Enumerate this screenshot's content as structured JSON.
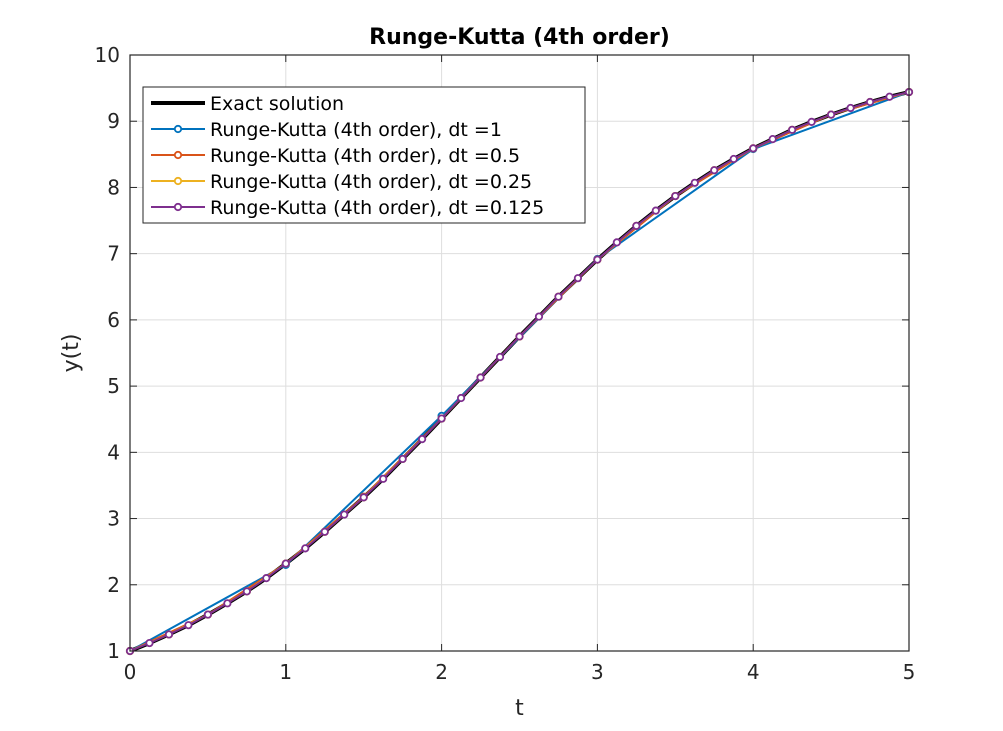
{
  "chart_data": {
    "type": "line",
    "title": "Runge-Kutta (4th order)",
    "xlabel": "t",
    "ylabel": "y(t)",
    "xlim": [
      0,
      5
    ],
    "ylim": [
      1,
      10
    ],
    "xticks": [
      0,
      1,
      2,
      3,
      4,
      5
    ],
    "yticks": [
      1,
      2,
      3,
      4,
      5,
      6,
      7,
      8,
      9,
      10
    ],
    "grid": true,
    "legend_position": "top-left",
    "series": [
      {
        "name": "Exact solution",
        "color": "#000000",
        "markers": false,
        "x": [
          0,
          0.125,
          0.25,
          0.375,
          0.5,
          0.625,
          0.75,
          0.875,
          1,
          1.125,
          1.25,
          1.375,
          1.5,
          1.625,
          1.75,
          1.875,
          2,
          2.125,
          2.25,
          2.375,
          2.5,
          2.625,
          2.75,
          2.875,
          3,
          3.125,
          3.25,
          3.375,
          3.5,
          3.625,
          3.75,
          3.875,
          4,
          4.125,
          4.25,
          4.375,
          4.5,
          4.625,
          4.75,
          4.875,
          5
        ],
        "y": [
          1.0,
          1.12,
          1.25,
          1.39,
          1.55,
          1.72,
          1.9,
          2.1,
          2.32,
          2.55,
          2.8,
          3.06,
          3.32,
          3.6,
          3.9,
          4.2,
          4.51,
          4.82,
          5.13,
          5.44,
          5.75,
          6.05,
          6.35,
          6.63,
          6.91,
          7.17,
          7.42,
          7.65,
          7.87,
          8.07,
          8.26,
          8.43,
          8.59,
          8.73,
          8.87,
          8.99,
          9.1,
          9.2,
          9.29,
          9.37,
          9.44
        ]
      },
      {
        "name": "Runge-Kutta (4th order), dt =1",
        "color": "#0072BD",
        "markers": true,
        "x": [
          0,
          1,
          2,
          3,
          4,
          5
        ],
        "y": [
          1.0,
          2.3,
          4.55,
          6.92,
          8.58,
          9.44
        ]
      },
      {
        "name": "Runge-Kutta (4th order), dt =0.5",
        "color": "#D95319",
        "markers": true,
        "x": [
          0,
          0.5,
          1,
          1.5,
          2,
          2.5,
          3,
          3.5,
          4,
          4.5,
          5
        ],
        "y": [
          1.0,
          1.55,
          2.32,
          3.33,
          4.51,
          5.75,
          6.91,
          7.87,
          8.59,
          9.1,
          9.44
        ]
      },
      {
        "name": "Runge-Kutta (4th order), dt =0.25",
        "color": "#EDB120",
        "markers": true,
        "x": [
          0,
          0.25,
          0.5,
          0.75,
          1,
          1.25,
          1.5,
          1.75,
          2,
          2.25,
          2.5,
          2.75,
          3,
          3.25,
          3.5,
          3.75,
          4,
          4.25,
          4.5,
          4.75,
          5
        ],
        "y": [
          1.0,
          1.25,
          1.55,
          1.9,
          2.32,
          2.8,
          3.32,
          3.9,
          4.51,
          5.13,
          5.75,
          6.35,
          6.91,
          7.42,
          7.87,
          8.26,
          8.59,
          8.87,
          9.1,
          9.29,
          9.44
        ]
      },
      {
        "name": "Runge-Kutta (4th order), dt =0.125",
        "color": "#7E2F8E",
        "markers": true,
        "x": [
          0,
          0.125,
          0.25,
          0.375,
          0.5,
          0.625,
          0.75,
          0.875,
          1,
          1.125,
          1.25,
          1.375,
          1.5,
          1.625,
          1.75,
          1.875,
          2,
          2.125,
          2.25,
          2.375,
          2.5,
          2.625,
          2.75,
          2.875,
          3,
          3.125,
          3.25,
          3.375,
          3.5,
          3.625,
          3.75,
          3.875,
          4,
          4.125,
          4.25,
          4.375,
          4.5,
          4.625,
          4.75,
          4.875,
          5
        ],
        "y": [
          1.0,
          1.12,
          1.25,
          1.39,
          1.55,
          1.72,
          1.9,
          2.1,
          2.32,
          2.55,
          2.8,
          3.06,
          3.32,
          3.6,
          3.9,
          4.2,
          4.51,
          4.82,
          5.13,
          5.44,
          5.75,
          6.05,
          6.35,
          6.63,
          6.91,
          7.17,
          7.42,
          7.65,
          7.87,
          8.07,
          8.26,
          8.43,
          8.59,
          8.73,
          8.87,
          8.99,
          9.1,
          9.2,
          9.29,
          9.37,
          9.44
        ]
      }
    ]
  }
}
